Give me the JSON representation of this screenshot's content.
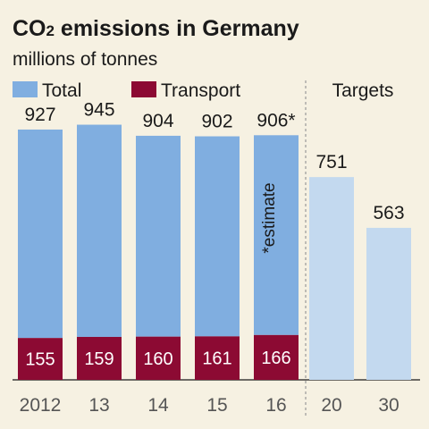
{
  "chart_data": {
    "type": "bar",
    "title": "CO",
    "title_sub": "2",
    "title_rest": " emissions in Germany",
    "subtitle": "millions of tonnes",
    "categories": [
      "2012",
      "13",
      "14",
      "15",
      "16"
    ],
    "series": [
      {
        "name": "Total",
        "values": [
          927,
          945,
          904,
          902,
          906
        ]
      },
      {
        "name": "Transport",
        "values": [
          155,
          159,
          160,
          161,
          166
        ]
      }
    ],
    "value_labels": [
      "927",
      "945",
      "904",
      "902",
      "906*"
    ],
    "targets_label": "Targets",
    "targets": {
      "categories": [
        "20",
        "30"
      ],
      "values": [
        751,
        563
      ]
    },
    "annotation": "*estimate",
    "ylim": [
      0,
      960
    ],
    "grid": false,
    "legend_position": "top-left",
    "colors": {
      "total": "#80aee0",
      "transport": "#8c0a33",
      "target": "#c3d9ef",
      "background": "#f6f1e2"
    }
  }
}
